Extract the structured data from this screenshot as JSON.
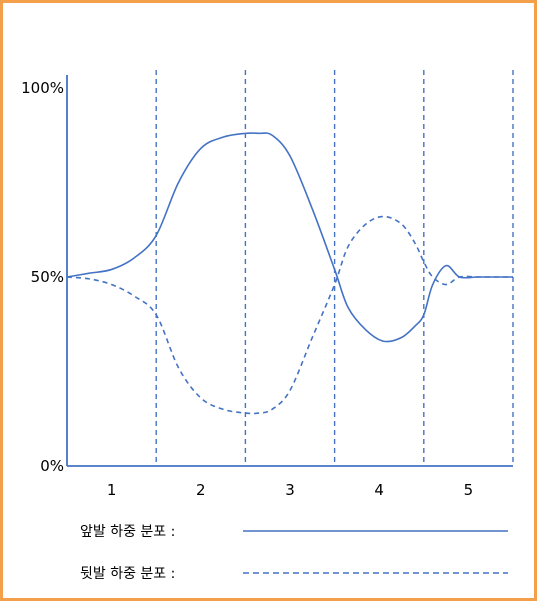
{
  "chart_data": {
    "type": "line",
    "title": "",
    "xlabel": "",
    "ylabel": "",
    "ylim": [
      0,
      100
    ],
    "xlim": [
      0.5,
      5.5
    ],
    "y_ticks": [
      {
        "value": 100,
        "label": "100%"
      },
      {
        "value": 50,
        "label": "50%"
      },
      {
        "value": 0,
        "label": "0%"
      }
    ],
    "x_categories": [
      "1",
      "2",
      "3",
      "4",
      "5"
    ],
    "phase_boundaries": [
      1.5,
      2.5,
      3.5,
      4.5,
      5.5
    ],
    "grid": false,
    "legend_position": "bottom",
    "series": [
      {
        "name": "앞발 하중 분포 :",
        "style": "solid",
        "color": "#4472C4",
        "x": [
          0.5,
          0.75,
          1.0,
          1.25,
          1.5,
          1.75,
          2.0,
          2.25,
          2.5,
          2.65,
          2.8,
          3.0,
          3.25,
          3.5,
          3.65,
          3.85,
          4.05,
          4.25,
          4.4,
          4.5,
          4.6,
          4.75,
          4.9,
          5.1,
          5.3,
          5.5
        ],
        "values": [
          50,
          51,
          52,
          55,
          61,
          75,
          84,
          87,
          88,
          88,
          87.5,
          82,
          68,
          52,
          42,
          36,
          33,
          34,
          37,
          40,
          48,
          53,
          50,
          50,
          50,
          50
        ]
      },
      {
        "name": "뒷발 하중 분포 :",
        "style": "dashed",
        "color": "#4472C4",
        "x": [
          0.5,
          0.75,
          1.0,
          1.25,
          1.5,
          1.75,
          2.0,
          2.25,
          2.5,
          2.65,
          2.8,
          3.0,
          3.25,
          3.5,
          3.65,
          3.85,
          4.05,
          4.25,
          4.4,
          4.5,
          4.6,
          4.75,
          4.9,
          5.1,
          5.3,
          5.5
        ],
        "values": [
          50,
          49.5,
          48,
          45,
          40,
          26,
          18,
          15,
          14,
          14,
          15,
          20,
          34,
          48,
          58,
          64,
          66,
          64,
          59,
          54,
          50,
          48,
          50,
          50,
          50,
          50
        ]
      }
    ]
  }
}
